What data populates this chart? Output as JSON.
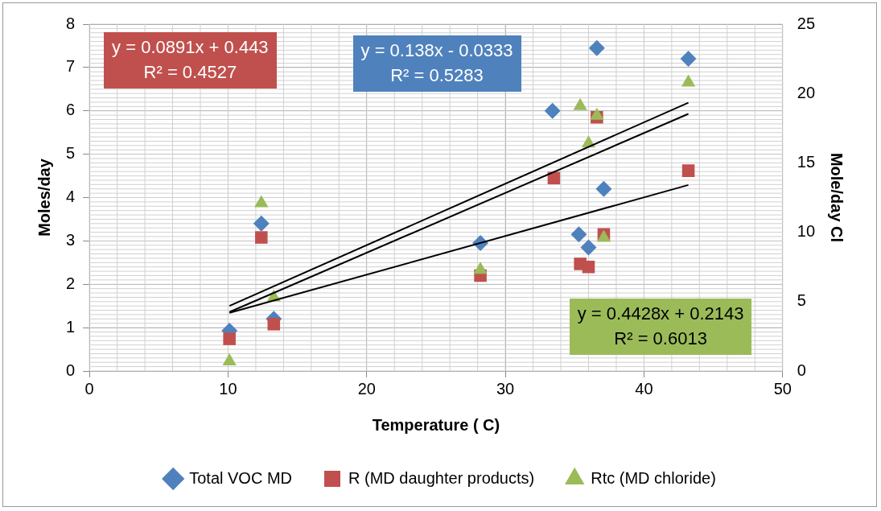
{
  "chart_data": {
    "type": "scatter",
    "xlabel": "Temperature ( C)",
    "ylabel": "Moles/day",
    "y2label": "Mole/day Cl",
    "xlim": [
      0,
      50
    ],
    "xticks": [
      0,
      10,
      20,
      30,
      40,
      50
    ],
    "ylim": [
      0,
      8
    ],
    "yticks": [
      0,
      1,
      2,
      3,
      4,
      5,
      6,
      7,
      8
    ],
    "y2lim": [
      0,
      25
    ],
    "y2ticks": [
      0,
      5,
      10,
      15,
      20,
      25
    ],
    "grid": true,
    "legend": "bottom",
    "series": [
      {
        "name": "Total VOC MD",
        "color": "#4f81bd",
        "marker": "diamond",
        "x": [
          10.1,
          12.4,
          13.3,
          28.2,
          33.4,
          35.3,
          36.0,
          36.6,
          37.1,
          43.2
        ],
        "values": [
          0.93,
          3.4,
          1.2,
          2.95,
          6.0,
          3.15,
          2.85,
          7.45,
          4.2,
          7.2
        ]
      },
      {
        "name": "R (MD daughter products)",
        "color": "#c0504d",
        "marker": "square",
        "x": [
          10.1,
          12.4,
          13.3,
          28.2,
          33.5,
          35.4,
          36.0,
          36.6,
          37.1,
          43.2
        ],
        "values": [
          0.74,
          3.08,
          1.08,
          2.2,
          4.45,
          2.47,
          2.4,
          5.85,
          3.15,
          4.62
        ]
      },
      {
        "name": "Rtc (MD chloride)",
        "color": "#9bbb59",
        "marker": "triangle",
        "axis": "y2",
        "x": [
          10.1,
          12.4,
          13.3,
          28.2,
          35.4,
          36.0,
          36.6,
          37.1,
          43.2
        ],
        "values": [
          0.7,
          12.1,
          5.3,
          7.3,
          19.1,
          16.4,
          18.4,
          9.6,
          20.8
        ]
      },
      {
        "type": "line",
        "color": "#000000",
        "marker": "none",
        "x": [
          10.1,
          43.2
        ],
        "values": [
          1.36,
          5.93
        ]
      },
      {
        "type": "line",
        "color": "#000000",
        "marker": "none",
        "x": [
          10.1,
          43.2
        ],
        "values": [
          1.34,
          4.29
        ]
      },
      {
        "type": "line",
        "color": "#000000",
        "marker": "none",
        "axis": "y2",
        "x": [
          10.1,
          43.2
        ],
        "values": [
          4.69,
          19.34
        ]
      }
    ],
    "annotations": [
      "y = 0.138x - 0.0333\nR² = 0.5283",
      "y = 0.0891x + 0.443\nR² = 0.4527",
      "y = 0.4428x + 0.2143\nR² = 0.6013"
    ]
  }
}
